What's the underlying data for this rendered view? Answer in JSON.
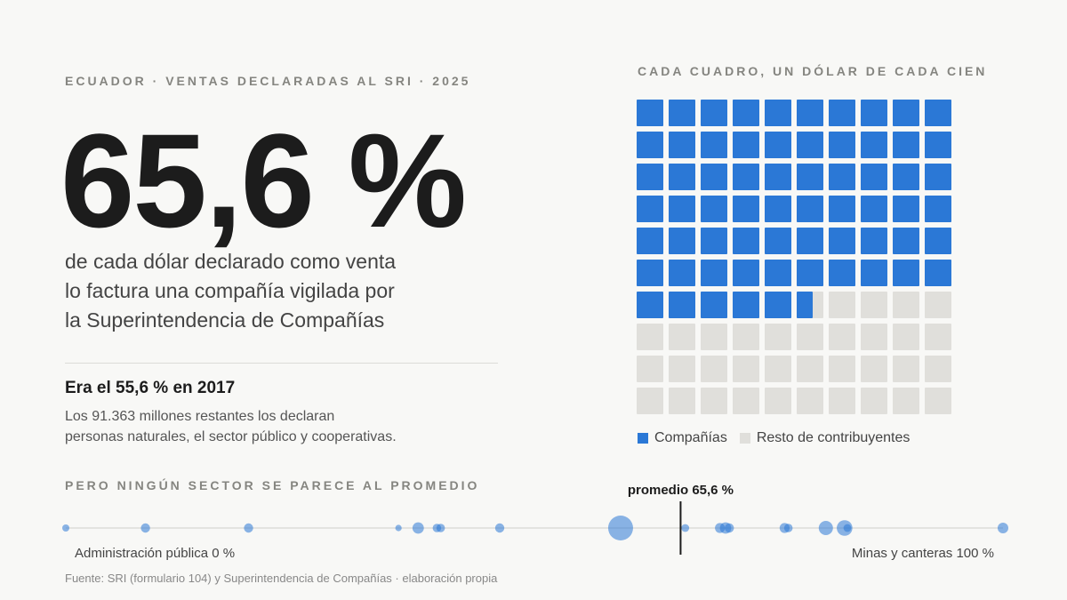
{
  "header": {
    "kicker": "ECUADOR · VENTAS DECLARADAS AL SRI · 2025"
  },
  "headline": {
    "value": "65,6 %",
    "lead_lines": [
      "de cada dólar declarado como venta",
      "lo factura una compañía vigilada por",
      "la Superintendencia de Compañías"
    ]
  },
  "comparison": {
    "title": "Era el 55,6 % en 2017",
    "text_lines": [
      "Los 91.363 millones restantes los declaran",
      "personas naturales, el sector público y cooperativas."
    ]
  },
  "waffle": {
    "title": "CADA CUADRO, UN DÓLAR DE CADA CIEN",
    "legend": [
      {
        "label": "Compañías",
        "color": "#2b78d6"
      },
      {
        "label": "Resto de contribuyentes",
        "color": "#e0dfdb"
      }
    ]
  },
  "sectors": {
    "kicker": "PERO NINGÚN SECTOR SE PARECE AL PROMEDIO",
    "average_label": "promedio 65,6 %",
    "min_label": "Administración pública 0 %",
    "max_label": "Minas y canteras 100 %"
  },
  "source": "Fuente: SRI (formulario 104) y Superintendencia de Compañías · elaboración propia",
  "chart_data": [
    {
      "type": "waffle",
      "title": "CADA CUADRO, UN DÓLAR DE CADA CIEN",
      "total": 100,
      "series": [
        {
          "name": "Compañías",
          "value": 65.6,
          "color": "#2b78d6"
        },
        {
          "name": "Resto de contribuyentes",
          "value": 34.4,
          "color": "#e0dfdb"
        }
      ]
    },
    {
      "type": "scatter",
      "title": "PERO NINGÚN SECTOR SE PARECE AL PROMEDIO",
      "xlim": [
        0,
        100
      ],
      "average": 65.6,
      "color": "#2b78d6",
      "points": [
        {
          "x": 0,
          "size": 1
        },
        {
          "x": 8.5,
          "size": 1.3
        },
        {
          "x": 19.5,
          "size": 1.3
        },
        {
          "x": 35.5,
          "size": 0.9
        },
        {
          "x": 37.6,
          "size": 1.6
        },
        {
          "x": 39.6,
          "size": 1.2
        },
        {
          "x": 40.0,
          "size": 1.2
        },
        {
          "x": 46.3,
          "size": 1.3
        },
        {
          "x": 59.2,
          "size": 3.5
        },
        {
          "x": 65.6,
          "size": 0
        },
        {
          "x": 66.1,
          "size": 1.1
        },
        {
          "x": 69.8,
          "size": 1.4
        },
        {
          "x": 70.4,
          "size": 1.6
        },
        {
          "x": 70.8,
          "size": 1.3
        },
        {
          "x": 76.7,
          "size": 1.4
        },
        {
          "x": 77.1,
          "size": 1.2
        },
        {
          "x": 81.1,
          "size": 2.0
        },
        {
          "x": 83.1,
          "size": 2.2
        },
        {
          "x": 83.4,
          "size": 1.1
        },
        {
          "x": 100,
          "size": 1.5
        }
      ]
    }
  ]
}
